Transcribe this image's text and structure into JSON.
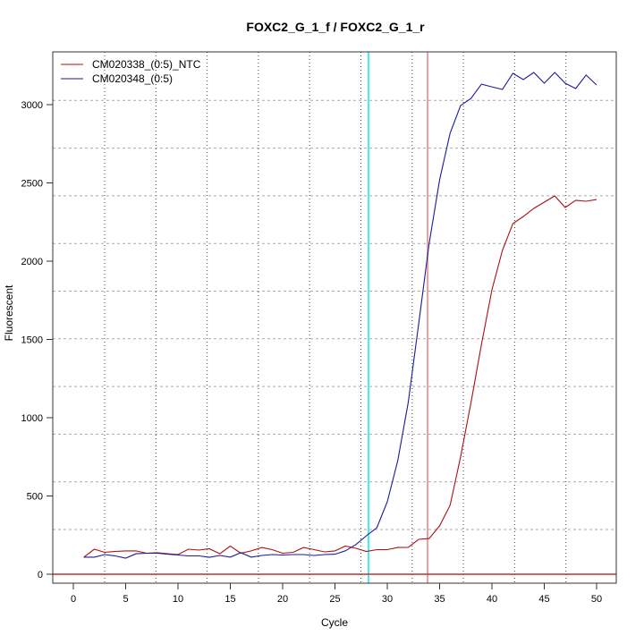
{
  "chart_data": {
    "type": "line",
    "title": "FOXC2_G_1_f / FOXC2_G_1_r",
    "xlabel": "Cycle",
    "ylabel": "Fluorescent",
    "xlim": [
      -2,
      52
    ],
    "ylim": [
      -30,
      3370
    ],
    "xticks": [
      0,
      5,
      10,
      15,
      20,
      25,
      30,
      35,
      40,
      45,
      50
    ],
    "yticks": [
      0,
      500,
      1000,
      1500,
      2000,
      2500,
      3000
    ],
    "legend_position": "top-left",
    "threshold_cycles": {
      "cyan": 28.2,
      "salmon": 33.85
    },
    "baseline_value": 0,
    "colors": {
      "ntc": "#aa1111",
      "sample": "#1a1aa0",
      "cyan": "#40f0f0",
      "salmon": "#e8a0a0",
      "baseline": "#c03030"
    },
    "x": [
      1,
      2,
      3,
      4,
      5,
      6,
      7,
      8,
      9,
      10,
      11,
      12,
      13,
      14,
      15,
      16,
      17,
      18,
      19,
      20,
      21,
      22,
      23,
      24,
      25,
      26,
      27,
      28,
      29,
      30,
      31,
      32,
      33,
      34,
      35,
      36,
      37,
      38,
      39,
      40,
      41,
      42,
      43,
      44,
      45,
      46,
      47,
      48,
      49,
      50
    ],
    "series": [
      {
        "name": "CM020338_(0:5)_NTC",
        "color": "#aa1111",
        "values": [
          109,
          160,
          140,
          146,
          149,
          149,
          134,
          138,
          131,
          126,
          160,
          154,
          163,
          131,
          180,
          134,
          149,
          171,
          157,
          134,
          140,
          171,
          157,
          143,
          149,
          180,
          166,
          146,
          157,
          157,
          171,
          172,
          223,
          228,
          309,
          440,
          749,
          1097,
          1469,
          1817,
          2069,
          2240,
          2286,
          2337,
          2377,
          2417,
          2343,
          2389,
          2383,
          2394
        ]
      },
      {
        "name": "CM020348_(0:5)",
        "color": "#1a1aa0",
        "values": [
          109,
          109,
          126,
          117,
          103,
          131,
          134,
          134,
          128,
          123,
          117,
          117,
          108,
          120,
          109,
          138,
          109,
          120,
          126,
          123,
          126,
          126,
          120,
          126,
          128,
          150,
          190,
          246,
          297,
          463,
          726,
          1097,
          1600,
          2114,
          2520,
          2817,
          2994,
          3040,
          3131,
          3114,
          3097,
          3200,
          3160,
          3206,
          3137,
          3206,
          3137,
          3103,
          3189,
          3126
        ]
      }
    ]
  }
}
